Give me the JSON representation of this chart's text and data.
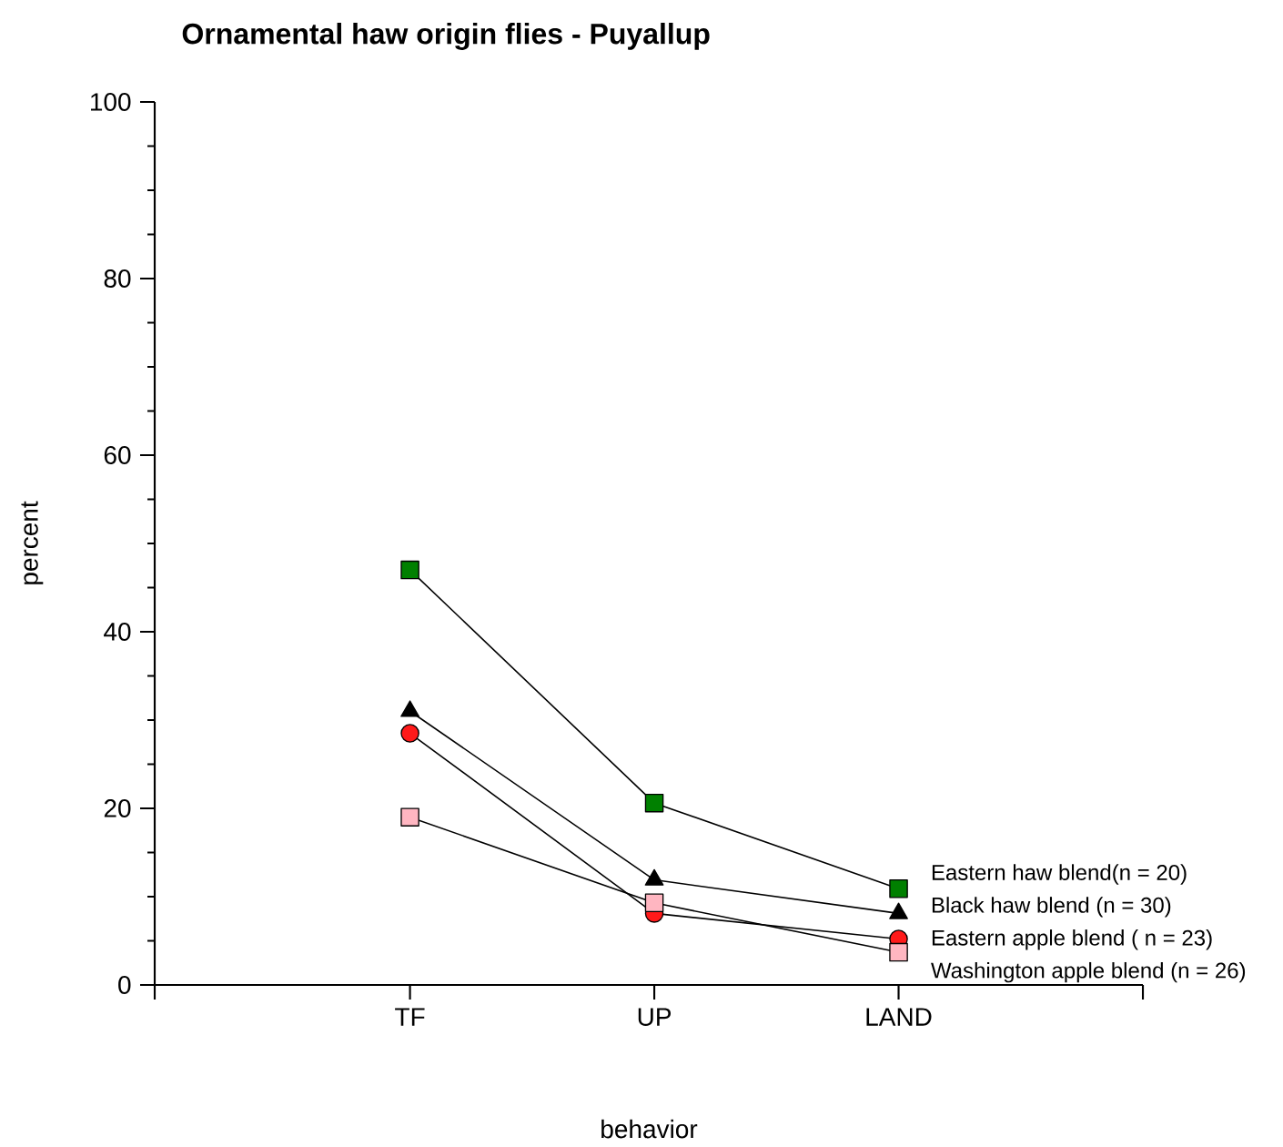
{
  "chart_data": {
    "type": "line",
    "title": "Ornamental haw origin flies - Puyallup",
    "xlabel": "behavior",
    "ylabel": "percent",
    "categories": [
      "TF",
      "UP",
      "LAND"
    ],
    "series": [
      {
        "name": "Eastern haw blend(n = 20)",
        "color": "#008000",
        "marker": "square",
        "values": [
          47.0,
          20.6,
          10.9
        ]
      },
      {
        "name": "Black haw blend (n = 30)",
        "color": "#000000",
        "marker": "triangle",
        "values": [
          31.0,
          11.9,
          8.1
        ]
      },
      {
        "name": "Eastern apple blend ( n = 23)",
        "color": "#ff1a1a",
        "marker": "circle",
        "values": [
          28.5,
          8.1,
          5.2
        ]
      },
      {
        "name": "Washington apple blend (n = 26)",
        "color": "#ffb6c1",
        "marker": "square",
        "values": [
          19.0,
          9.3,
          3.7
        ]
      }
    ],
    "ylim": [
      0,
      100
    ],
    "yticks": [
      0,
      20,
      40,
      60,
      80,
      100
    ],
    "grid": false,
    "line_style": "solid"
  }
}
